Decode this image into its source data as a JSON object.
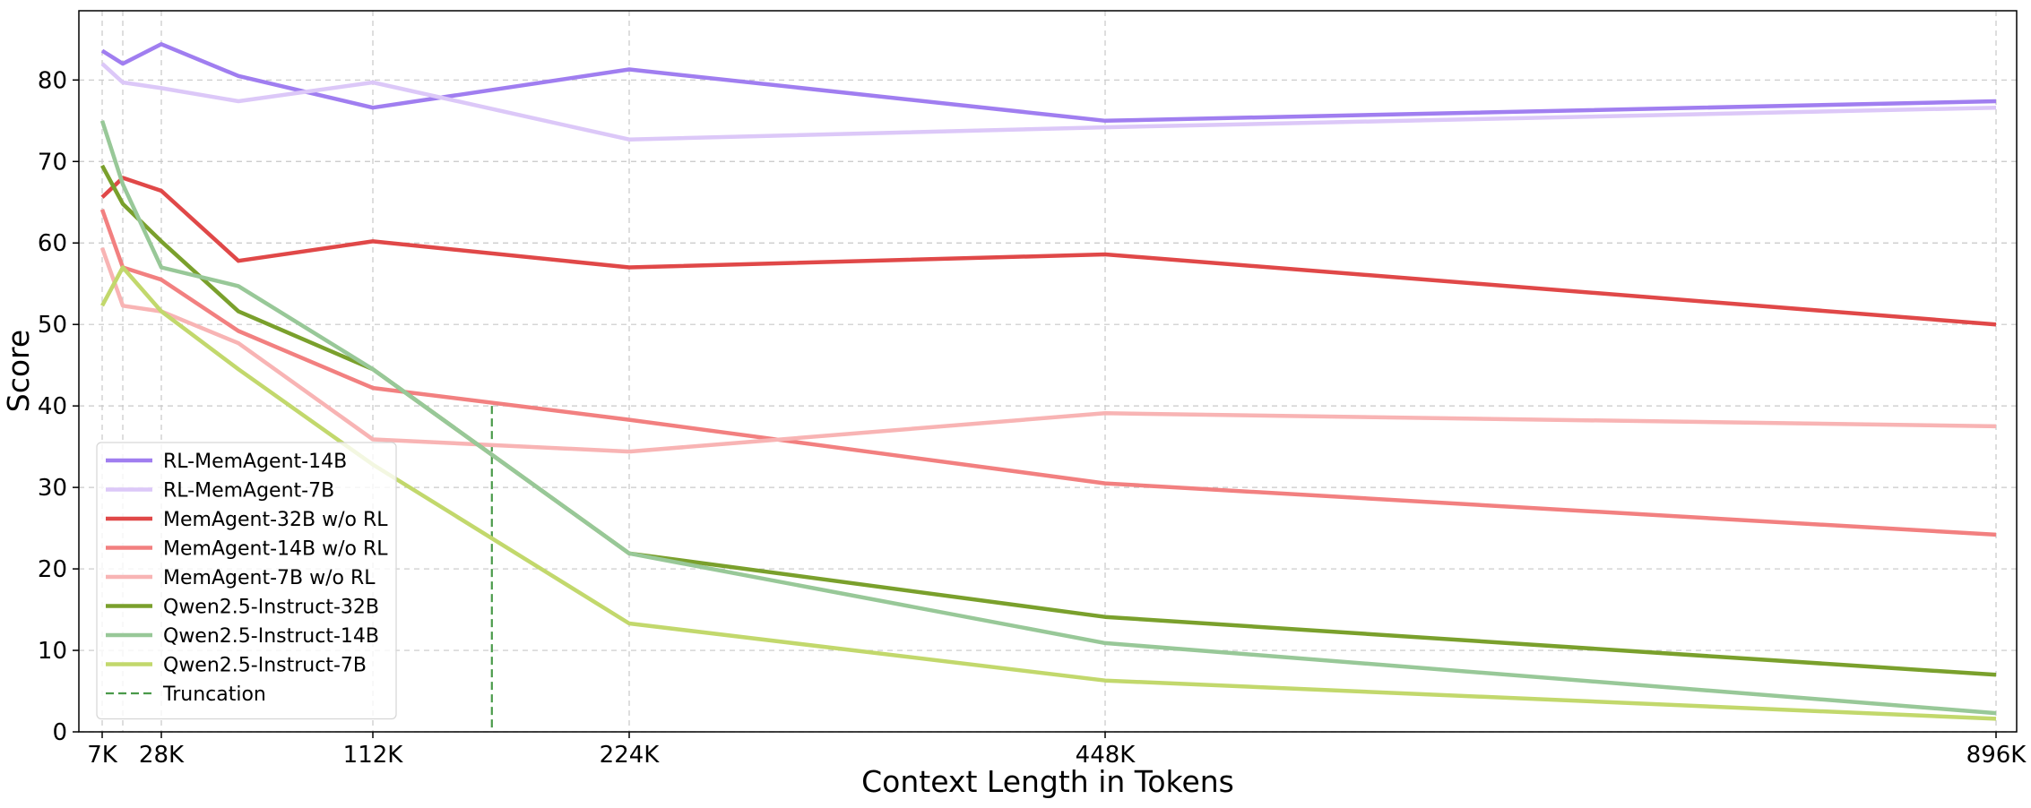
{
  "chart_data": {
    "type": "line",
    "title": "",
    "xlabel": "Context Length in Tokens",
    "ylabel": "Score",
    "x": [
      7,
      14,
      28,
      56,
      112,
      224,
      448,
      896
    ],
    "x_unit": "K tokens",
    "xticks": [
      {
        "value": 7,
        "label": "7K"
      },
      {
        "value": 28,
        "label": "28K"
      },
      {
        "value": 112,
        "label": "112K"
      },
      {
        "value": 224,
        "label": "224K"
      },
      {
        "value": 448,
        "label": "448K"
      },
      {
        "value": 896,
        "label": "896K"
      }
    ],
    "x_gridlines": [
      7,
      14,
      28,
      112,
      224,
      448,
      896
    ],
    "yticks": [
      0,
      10,
      20,
      30,
      40,
      50,
      60,
      70,
      80
    ],
    "ylim": [
      0,
      88.5
    ],
    "grid": true,
    "legend_position": "lower-left",
    "series": [
      {
        "name": "RL-MemAgent-14B",
        "color": "#a07ef0",
        "values": [
          83.6,
          82.0,
          84.4,
          80.5,
          76.6,
          81.3,
          75.0,
          77.4
        ]
      },
      {
        "name": "RL-MemAgent-7B",
        "color": "#dcc8f8",
        "values": [
          82.0,
          79.7,
          79.0,
          77.4,
          79.7,
          72.7,
          74.2,
          76.6
        ]
      },
      {
        "name": "MemAgent-32B w/o RL",
        "color": "#e04848",
        "values": [
          65.6,
          68.0,
          66.4,
          57.8,
          60.2,
          57.0,
          58.6,
          50.0
        ]
      },
      {
        "name": "MemAgent-14B w/o RL",
        "color": "#f28080",
        "values": [
          64.1,
          57.0,
          55.5,
          49.2,
          42.2,
          38.3,
          30.5,
          24.2
        ]
      },
      {
        "name": "MemAgent-7B w/o RL",
        "color": "#f8b4b4",
        "values": [
          59.4,
          52.3,
          51.6,
          47.7,
          35.9,
          34.4,
          39.1,
          37.5
        ]
      },
      {
        "name": "Qwen2.5-Instruct-32B",
        "color": "#7aa02c",
        "values": [
          69.5,
          64.8,
          60.2,
          51.6,
          44.5,
          21.9,
          14.1,
          7.0
        ]
      },
      {
        "name": "Qwen2.5-Instruct-14B",
        "color": "#98c898",
        "values": [
          75.0,
          67.2,
          57.0,
          54.7,
          44.5,
          21.9,
          10.9,
          2.3
        ]
      },
      {
        "name": "Qwen2.5-Instruct-7B",
        "color": "#c2d86c",
        "values": [
          52.3,
          57.0,
          51.6,
          44.5,
          32.8,
          13.3,
          6.3,
          1.6
        ]
      }
    ],
    "truncation": {
      "label": "Truncation",
      "x": 164,
      "y_top": 40,
      "color": "#4a9a4a"
    }
  }
}
